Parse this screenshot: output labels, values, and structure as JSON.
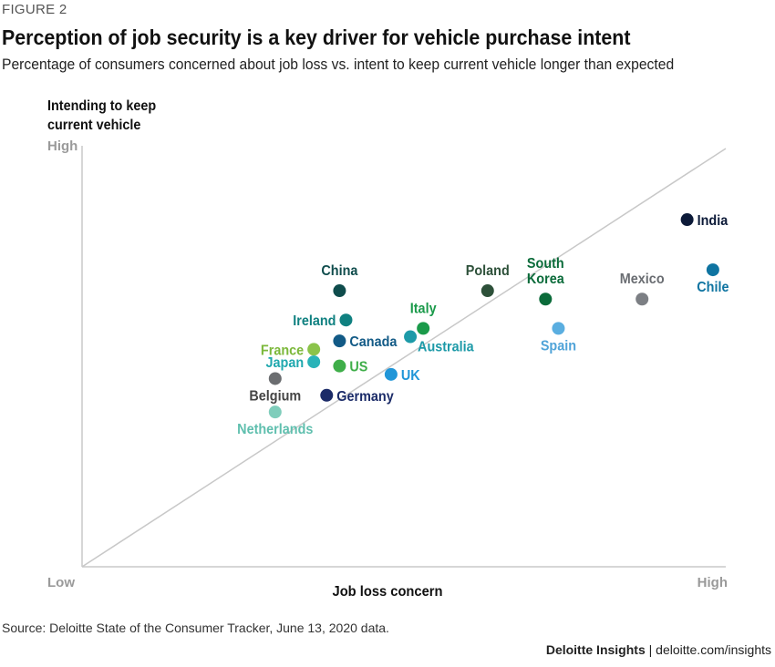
{
  "figure_label": "FIGURE 2",
  "title": "Perception of job security is a key driver for vehicle purchase intent",
  "subtitle": "Percentage of consumers concerned about job loss vs. intent to keep current vehicle longer than expected",
  "source": "Source: Deloitte State of the Consumer Tracker, June 13, 2020 data.",
  "footer": {
    "brand": "Deloitte Insights",
    "separator": " | ",
    "url": "deloitte.com/insights"
  },
  "chart_data": {
    "type": "scatter",
    "ylabel_lines": [
      "Intending to keep",
      "current vehicle"
    ],
    "xlabel": "Job loss concern",
    "x_tick_low": "Low",
    "x_tick_high": "High",
    "y_tick_high": "High",
    "xlim": [
      0,
      100
    ],
    "ylim": [
      0,
      100
    ],
    "reference_line": "diagonal",
    "grid": false,
    "points": [
      {
        "name": "India",
        "lines": [
          "India"
        ],
        "x": 94,
        "y": 83,
        "color": "#0c1a38",
        "label_color": "#0c1a38",
        "label_pos": "right"
      },
      {
        "name": "Chile",
        "lines": [
          "Chile"
        ],
        "x": 98,
        "y": 71,
        "color": "#0f74a1",
        "label_color": "#0f74a1",
        "label_pos": "below"
      },
      {
        "name": "Mexico",
        "lines": [
          "Mexico"
        ],
        "x": 87,
        "y": 64,
        "color": "#7c7f84",
        "label_color": "#6a6d72",
        "label_pos": "above"
      },
      {
        "name": "South Korea",
        "lines": [
          "South",
          "Korea"
        ],
        "x": 72,
        "y": 64,
        "color": "#0b6b3a",
        "label_color": "#0b6b3a",
        "label_pos": "above"
      },
      {
        "name": "Poland",
        "lines": [
          "Poland"
        ],
        "x": 63,
        "y": 66,
        "color": "#2d5039",
        "label_color": "#2d5039",
        "label_pos": "above"
      },
      {
        "name": "China",
        "lines": [
          "China"
        ],
        "x": 40,
        "y": 66,
        "color": "#0f4c4c",
        "label_color": "#0f4c4c",
        "label_pos": "above"
      },
      {
        "name": "Ireland",
        "lines": [
          "Ireland"
        ],
        "x": 41,
        "y": 59,
        "color": "#0f8080",
        "label_color": "#0f8080",
        "label_pos": "left"
      },
      {
        "name": "Italy",
        "lines": [
          "Italy"
        ],
        "x": 53,
        "y": 57,
        "color": "#1a9a4a",
        "label_color": "#1a9a4a",
        "label_pos": "above"
      },
      {
        "name": "Australia",
        "lines": [
          "Australia"
        ],
        "x": 51,
        "y": 55,
        "color": "#1d9aa8",
        "label_color": "#1d9aa8",
        "label_pos": "below-right"
      },
      {
        "name": "Canada",
        "lines": [
          "Canada"
        ],
        "x": 40,
        "y": 54,
        "color": "#125a86",
        "label_color": "#125a86",
        "label_pos": "right"
      },
      {
        "name": "Spain",
        "lines": [
          "Spain"
        ],
        "x": 74,
        "y": 57,
        "color": "#5aaee0",
        "label_color": "#4fa3d8",
        "label_pos": "below"
      },
      {
        "name": "France",
        "lines": [
          "France"
        ],
        "x": 36,
        "y": 52,
        "color": "#8bc34a",
        "label_color": "#7cb83b",
        "label_pos": "left"
      },
      {
        "name": "Japan",
        "lines": [
          "Japan"
        ],
        "x": 36,
        "y": 49,
        "color": "#29b3b8",
        "label_color": "#1fa8ae",
        "label_pos": "left"
      },
      {
        "name": "US",
        "lines": [
          "US"
        ],
        "x": 40,
        "y": 48,
        "color": "#3fae49",
        "label_color": "#3fae49",
        "label_pos": "right"
      },
      {
        "name": "UK",
        "lines": [
          "UK"
        ],
        "x": 48,
        "y": 46,
        "color": "#2196d8",
        "label_color": "#2196d8",
        "label_pos": "right"
      },
      {
        "name": "Belgium",
        "lines": [
          "Belgium"
        ],
        "x": 30,
        "y": 45,
        "color": "#6b6d70",
        "label_color": "#444",
        "label_pos": "below"
      },
      {
        "name": "Germany",
        "lines": [
          "Germany"
        ],
        "x": 38,
        "y": 41,
        "color": "#1b2b68",
        "label_color": "#1b2b68",
        "label_pos": "right"
      },
      {
        "name": "Netherlands",
        "lines": [
          "Netherlands"
        ],
        "x": 30,
        "y": 37,
        "color": "#7fcdbb",
        "label_color": "#5fbfae",
        "label_pos": "below"
      }
    ]
  }
}
